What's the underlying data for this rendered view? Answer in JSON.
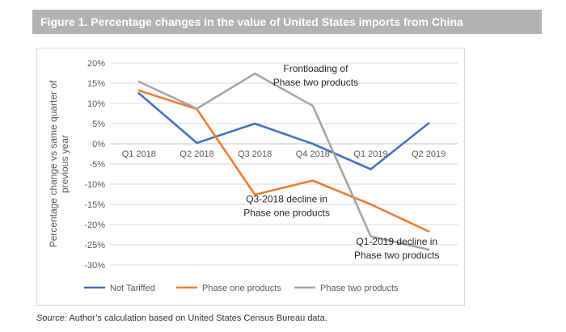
{
  "header": {
    "title": "Figure 1. Percentage changes in the value of United States imports from China"
  },
  "source": {
    "label": "Source:",
    "text": " Author’s calculation based on United States Census Bureau data."
  },
  "chart_data": {
    "type": "line",
    "title": "",
    "xlabel": "",
    "ylabel": "Percentage change vs same quarter of previous year",
    "ylabel_lines": [
      "Percentage change vs same quarter of",
      "previous year"
    ],
    "categories": [
      "Q1 2018",
      "Q2 2018",
      "Q3 2018",
      "Q4 2018",
      "Q1 2019",
      "Q2 2019"
    ],
    "ylim": [
      -30,
      20
    ],
    "yticks": [
      20,
      15,
      10,
      5,
      0,
      -5,
      -10,
      -15,
      -20,
      -25,
      -30
    ],
    "ytick_labels": [
      "20%",
      "15%",
      "10%",
      "5%",
      "0%",
      "-5%",
      "-10%",
      "-15%",
      "-20%",
      "-25%",
      "-30%"
    ],
    "grid": true,
    "legend_position": "bottom",
    "series": [
      {
        "name": "Not Tariffed",
        "color": "#4472c4",
        "values": [
          12.5,
          0.2,
          5.0,
          0.0,
          -6.3,
          5.1
        ]
      },
      {
        "name": "Phase one products",
        "color": "#ed7d31",
        "values": [
          13.2,
          8.6,
          -12.6,
          -9.1,
          -15.0,
          -21.7
        ]
      },
      {
        "name": "Phase two products",
        "color": "#a5a5a5",
        "values": [
          15.4,
          8.7,
          17.4,
          9.4,
          -22.9,
          -26.2
        ]
      }
    ],
    "annotations": [
      {
        "lines": [
          "Frontloading of",
          "Phase two products"
        ],
        "x_index": 3.05,
        "y": 17.8,
        "align": "center"
      },
      {
        "lines": [
          "Q3-2018 decline in",
          "Phase one products"
        ],
        "x_index": 2.55,
        "y": -14.5,
        "align": "center"
      },
      {
        "lines": [
          "Q1-2019 decline in",
          "Phase two products"
        ],
        "x_index": 4.45,
        "y": -25.0,
        "align": "center"
      }
    ]
  }
}
